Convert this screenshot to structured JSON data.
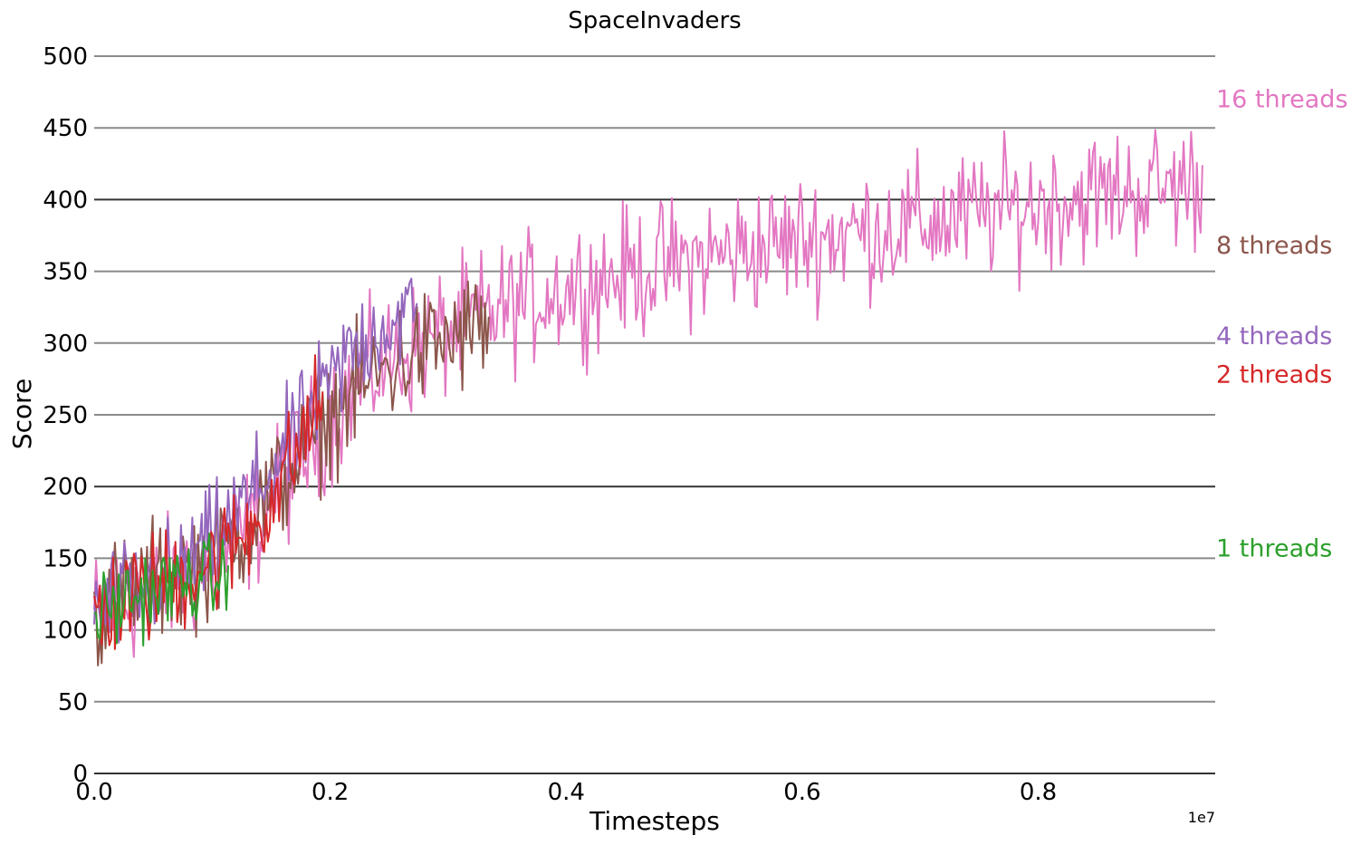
{
  "chart_data": {
    "type": "line",
    "title": "SpaceInvaders",
    "xlabel": "Timesteps",
    "ylabel": "Score",
    "x_offset_label": "1e7",
    "xlim": [
      0,
      9500000
    ],
    "ylim": [
      0,
      500
    ],
    "x_ticks": [
      0,
      2000000,
      4000000,
      6000000,
      8000000
    ],
    "x_tick_labels": [
      "0.0",
      "0.2",
      "0.4",
      "0.6",
      "0.8"
    ],
    "y_ticks": [
      0,
      50,
      100,
      150,
      200,
      250,
      300,
      350,
      400,
      450,
      500
    ],
    "y_tick_labels": [
      "0",
      "50",
      "100",
      "150",
      "200",
      "250",
      "300",
      "350",
      "400",
      "450",
      "500"
    ],
    "grid": "horizontal",
    "legend": "direct labels at right edge",
    "series": [
      {
        "name": "16 threads",
        "color": "#e377c2",
        "x": [
          0,
          200000,
          400000,
          600000,
          800000,
          1000000,
          1200000,
          1400000,
          1600000,
          1800000,
          2000000,
          2200000,
          2400000,
          2600000,
          2800000,
          3000000,
          3200000,
          3400000,
          3600000,
          3800000,
          4000000,
          4200000,
          4400000,
          4600000,
          4800000,
          5000000,
          5200000,
          5400000,
          5600000,
          5800000,
          6000000,
          6200000,
          6400000,
          6600000,
          6800000,
          7000000,
          7200000,
          7400000,
          7600000,
          7800000,
          8000000,
          8200000,
          8400000,
          8600000,
          8800000,
          9000000,
          9200000,
          9400000
        ],
        "y": [
          110,
          118,
          125,
          132,
          138,
          145,
          160,
          180,
          200,
          225,
          250,
          268,
          282,
          292,
          300,
          308,
          316,
          322,
          328,
          334,
          338,
          342,
          346,
          350,
          353,
          356,
          360,
          363,
          366,
          369,
          372,
          375,
          377,
          379,
          381,
          383,
          385,
          388,
          391,
          394,
          397,
          400,
          402,
          404,
          406,
          408,
          410,
          412
        ],
        "noise": 28,
        "label_y": 470
      },
      {
        "name": "8 threads",
        "color": "#8c564b",
        "x": [
          0,
          200000,
          400000,
          600000,
          800000,
          1000000,
          1200000,
          1400000,
          1600000,
          1800000,
          2000000,
          2200000,
          2400000,
          2600000,
          2800000,
          3000000,
          3200000,
          3350000
        ],
        "y": [
          112,
          122,
          130,
          137,
          143,
          150,
          165,
          185,
          205,
          228,
          250,
          265,
          278,
          288,
          296,
          302,
          308,
          314
        ],
        "noise": 26,
        "label_y": 368
      },
      {
        "name": "4 threads",
        "color": "#9467bd",
        "x": [
          0,
          200000,
          400000,
          600000,
          800000,
          1000000,
          1200000,
          1400000,
          1600000,
          1800000,
          2000000,
          2200000,
          2400000,
          2600000,
          2750000
        ],
        "y": [
          108,
          120,
          128,
          136,
          145,
          160,
          180,
          200,
          222,
          245,
          272,
          296,
          310,
          318,
          322
        ],
        "noise": 24,
        "label_y": 305
      },
      {
        "name": "2 threads",
        "color": "#d62728",
        "x": [
          0,
          200000,
          400000,
          600000,
          800000,
          1000000,
          1200000,
          1400000,
          1600000,
          1800000,
          1950000
        ],
        "y": [
          115,
          118,
          125,
          133,
          140,
          148,
          160,
          178,
          205,
          240,
          262
        ],
        "noise": 24,
        "label_y": 278
      },
      {
        "name": "1 threads",
        "color": "#2ca02c",
        "x": [
          0,
          200000,
          400000,
          600000,
          800000,
          1000000,
          1150000
        ],
        "y": [
          110,
          118,
          125,
          130,
          133,
          136,
          138
        ],
        "noise": 18,
        "label_y": 157
      }
    ]
  }
}
